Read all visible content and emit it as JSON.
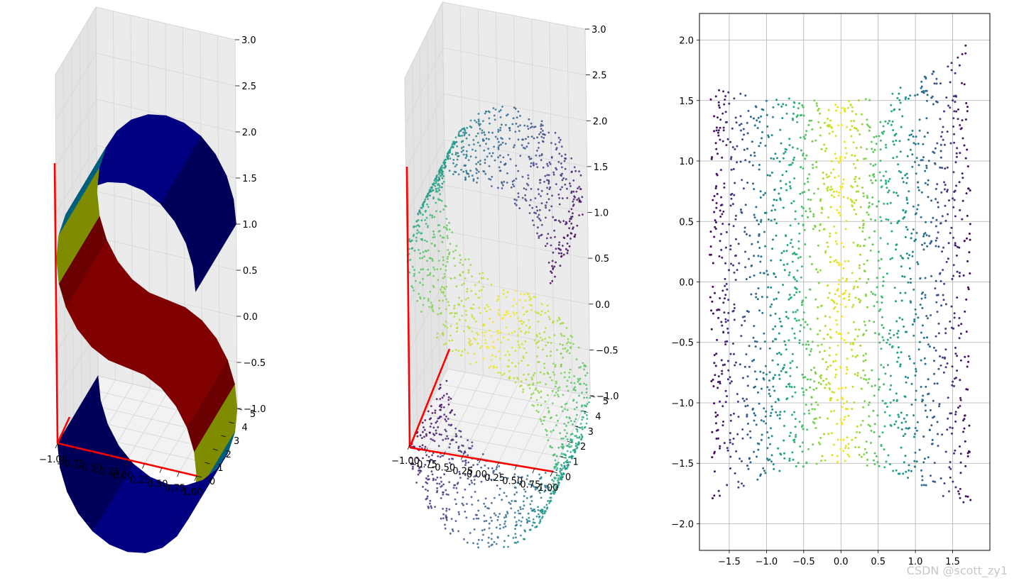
{
  "watermark": "CSDN @scott_zy1",
  "colors": {
    "axis_line": "#ff0000",
    "pane": "#f0f0f0",
    "grid": "#d6d6d6",
    "grid2d": "#b0b0b0",
    "surface_bands": [
      "#00005a",
      "#000080",
      "#005f7a",
      "#7f8c00",
      "#800000",
      "#6a0000"
    ]
  },
  "chart_data": [
    {
      "name": "surface-3d",
      "type": "surface",
      "title": "",
      "description": "S-curve surface (x = sin t, z = sign(t)(cos t - 1), y in [0, 5]) colored by t, with red coordinate axes",
      "x_ticks": [
        "−1.00",
        "−0.75",
        "−0.50",
        "−0.25",
        "0.00",
        "0.25",
        "0.50",
        "0.75",
        "1.00"
      ],
      "y_ticks": [
        "0",
        "1",
        "2",
        "3",
        "4",
        "5"
      ],
      "z_ticks": [
        "−1.0",
        "−0.5",
        "0.0",
        "0.5",
        "1.0",
        "1.5",
        "2.0",
        "2.5",
        "3.0"
      ],
      "xlim": [
        -1,
        1
      ],
      "ylim": [
        0,
        5
      ],
      "zlim": [
        -1,
        3
      ]
    },
    {
      "name": "scatter-3d",
      "type": "scatter",
      "title": "",
      "description": "Random S-curve points in 3D colored by viridis position along the curve, with red coordinate axes",
      "n_points": 2000,
      "x_ticks": [
        "−1.00",
        "−0.75",
        "−0.50",
        "−0.25",
        "0.00",
        "0.25",
        "0.50",
        "0.75",
        "1.00"
      ],
      "y_ticks": [
        "0",
        "1",
        "2",
        "3",
        "4",
        "5"
      ],
      "z_ticks": [
        "−1.0",
        "−0.5",
        "0.0",
        "0.5",
        "1.0",
        "1.5",
        "2.0",
        "2.5",
        "3.0"
      ],
      "xlim": [
        -1,
        1
      ],
      "ylim": [
        0,
        5
      ],
      "zlim": [
        -1,
        3
      ]
    },
    {
      "name": "scatter-2d",
      "type": "scatter",
      "title": "",
      "description": "2D embedding of the S-curve, viridis colored, yellow center column fading to purple edges",
      "n_points": 2000,
      "x_ticks": [
        "−1.5",
        "−1.0",
        "−0.5",
        "0.0",
        "0.5",
        "1.0",
        "1.5"
      ],
      "y_ticks": [
        "−2.0",
        "−1.5",
        "−1.0",
        "−0.5",
        "0.0",
        "0.5",
        "1.0",
        "1.5",
        "2.0"
      ],
      "xlim": [
        -1.9,
        2.0
      ],
      "ylim": [
        -2.22,
        2.22
      ],
      "grid": true
    }
  ]
}
